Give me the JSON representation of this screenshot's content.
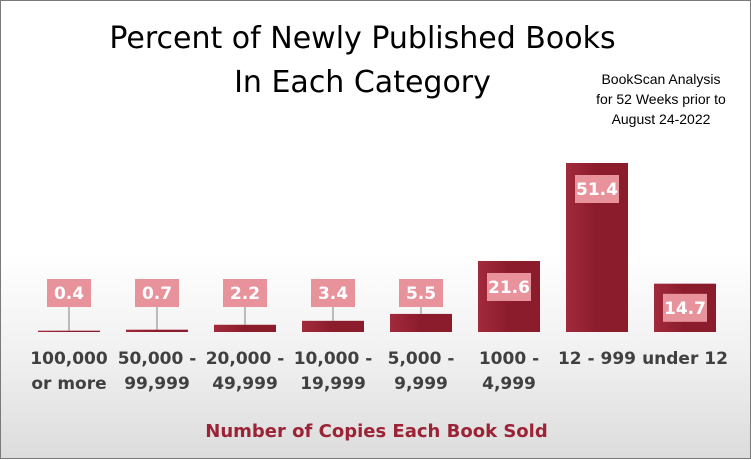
{
  "chart_data": {
    "type": "bar",
    "title_lines": [
      "Percent of Newly Published Books",
      "In Each Category"
    ],
    "annotation_lines": [
      "BookScan Analysis",
      "for 52 Weeks prior to",
      "August 24-2022"
    ],
    "xlabel": "Number of Copies Each Book Sold",
    "categories": [
      [
        "100,000",
        "or more"
      ],
      [
        "50,000 -",
        "99,999"
      ],
      [
        "20,000 -",
        "49,999"
      ],
      [
        "10,000 -",
        "19,999"
      ],
      [
        "5,000 -",
        "9,999"
      ],
      [
        "1000 -",
        "4,999"
      ],
      [
        "12 - 999"
      ],
      [
        "under 12"
      ]
    ],
    "values": [
      0.4,
      0.7,
      2.2,
      3.4,
      5.5,
      21.6,
      51.4,
      14.7
    ],
    "value_labels": [
      "0.4",
      "0.7",
      "2.2",
      "3.4",
      "5.5",
      "21.6",
      "51.4",
      "14.7"
    ],
    "ylim": [
      0,
      51.4
    ],
    "grid": false,
    "legend": "none",
    "colors": {
      "bar": "#8b1c2c",
      "bar_light": "#a22a3c",
      "label_box": "#e8939c",
      "label_text": "#ffffff",
      "axis_label": "#9b2335",
      "tick_label": "#404040",
      "leader": "#808080"
    }
  }
}
